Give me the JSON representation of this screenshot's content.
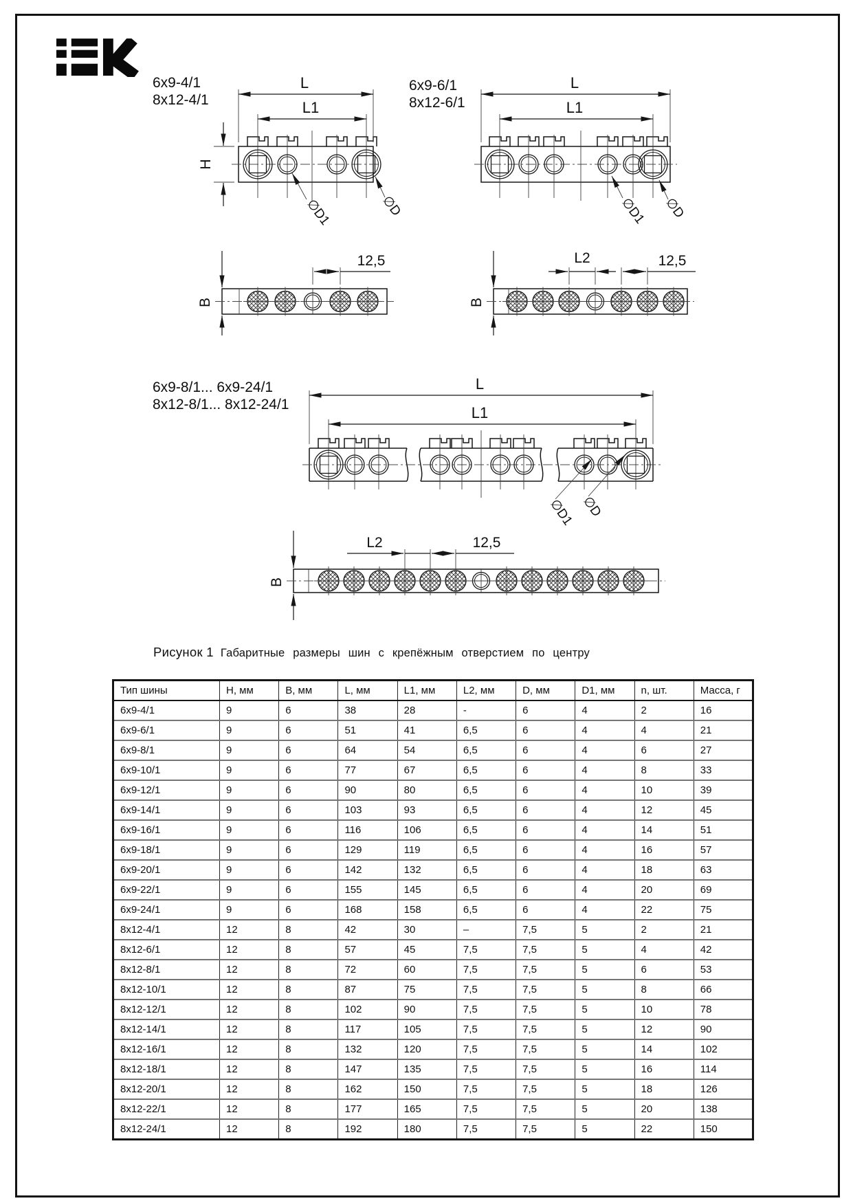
{
  "logo": {
    "alt": "IEK"
  },
  "figure": {
    "caption_label": "Рисунок 1",
    "caption_text": "Габаритные размеры шин с крепёжным отверстием по центру"
  },
  "drawings": {
    "variant_a": {
      "line1": "6x9-4/1",
      "line2": "8x12-4/1"
    },
    "variant_b": {
      "line1": "6x9-6/1",
      "line2": "8x12-6/1"
    },
    "variant_c": {
      "line1": "6x9-8/1... 6x9-24/1",
      "line2": "8x12-8/1... 8x12-24/1"
    },
    "dims": {
      "L": "L",
      "L1": "L1",
      "L2": "L2",
      "H": "H",
      "B": "B",
      "pitch": "12,5",
      "dia_d": "∅D",
      "dia_d1": "∅D1"
    }
  },
  "table": {
    "headers": [
      "Тип шины",
      "H, мм",
      "B, мм",
      "L, мм",
      "L1, мм",
      "L2, мм",
      "D, мм",
      "D1, мм",
      "n, шт.",
      "Масса, г"
    ],
    "rows": [
      [
        "6x9-4/1",
        "9",
        "6",
        "38",
        "28",
        "-",
        "6",
        "4",
        "2",
        "16"
      ],
      [
        "6x9-6/1",
        "9",
        "6",
        "51",
        "41",
        "6,5",
        "6",
        "4",
        "4",
        "21"
      ],
      [
        "6x9-8/1",
        "9",
        "6",
        "64",
        "54",
        "6,5",
        "6",
        "4",
        "6",
        "27"
      ],
      [
        "6x9-10/1",
        "9",
        "6",
        "77",
        "67",
        "6,5",
        "6",
        "4",
        "8",
        "33"
      ],
      [
        "6x9-12/1",
        "9",
        "6",
        "90",
        "80",
        "6,5",
        "6",
        "4",
        "10",
        "39"
      ],
      [
        "6x9-14/1",
        "9",
        "6",
        "103",
        "93",
        "6,5",
        "6",
        "4",
        "12",
        "45"
      ],
      [
        "6x9-16/1",
        "9",
        "6",
        "116",
        "106",
        "6,5",
        "6",
        "4",
        "14",
        "51"
      ],
      [
        "6x9-18/1",
        "9",
        "6",
        "129",
        "119",
        "6,5",
        "6",
        "4",
        "16",
        "57"
      ],
      [
        "6x9-20/1",
        "9",
        "6",
        "142",
        "132",
        "6,5",
        "6",
        "4",
        "18",
        "63"
      ],
      [
        "6x9-22/1",
        "9",
        "6",
        "155",
        "145",
        "6,5",
        "6",
        "4",
        "20",
        "69"
      ],
      [
        "6x9-24/1",
        "9",
        "6",
        "168",
        "158",
        "6,5",
        "6",
        "4",
        "22",
        "75"
      ],
      [
        "8x12-4/1",
        "12",
        "8",
        "42",
        "30",
        "–",
        "7,5",
        "5",
        "2",
        "21"
      ],
      [
        "8x12-6/1",
        "12",
        "8",
        "57",
        "45",
        "7,5",
        "7,5",
        "5",
        "4",
        "42"
      ],
      [
        "8x12-8/1",
        "12",
        "8",
        "72",
        "60",
        "7,5",
        "7,5",
        "5",
        "6",
        "53"
      ],
      [
        "8x12-10/1",
        "12",
        "8",
        "87",
        "75",
        "7,5",
        "7,5",
        "5",
        "8",
        "66"
      ],
      [
        "8x12-12/1",
        "12",
        "8",
        "102",
        "90",
        "7,5",
        "7,5",
        "5",
        "10",
        "78"
      ],
      [
        "8x12-14/1",
        "12",
        "8",
        "117",
        "105",
        "7,5",
        "7,5",
        "5",
        "12",
        "90"
      ],
      [
        "8x12-16/1",
        "12",
        "8",
        "132",
        "120",
        "7,5",
        "7,5",
        "5",
        "14",
        "102"
      ],
      [
        "8x12-18/1",
        "12",
        "8",
        "147",
        "135",
        "7,5",
        "7,5",
        "5",
        "16",
        "114"
      ],
      [
        "8x12-20/1",
        "12",
        "8",
        "162",
        "150",
        "7,5",
        "7,5",
        "5",
        "18",
        "126"
      ],
      [
        "8x12-22/1",
        "12",
        "8",
        "177",
        "165",
        "7,5",
        "7,5",
        "5",
        "20",
        "138"
      ],
      [
        "8x12-24/1",
        "12",
        "8",
        "192",
        "180",
        "7,5",
        "7,5",
        "5",
        "22",
        "150"
      ]
    ]
  }
}
